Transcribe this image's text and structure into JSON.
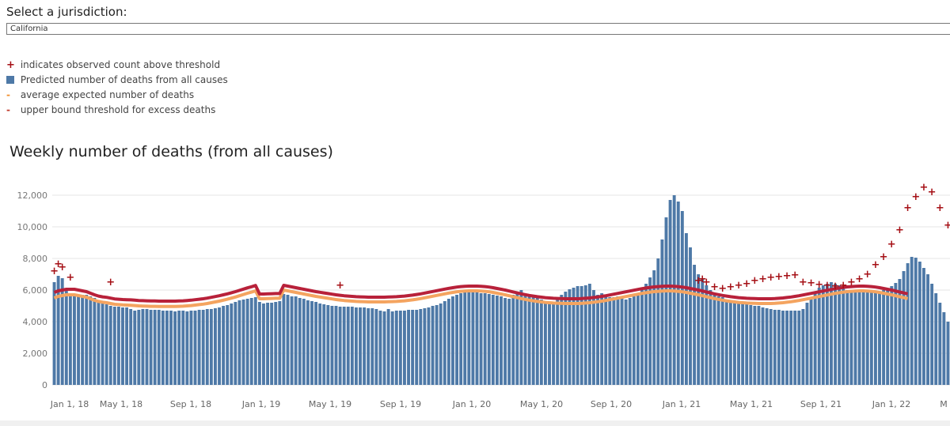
{
  "selector": {
    "label": "Select a jurisdiction:",
    "value": "California"
  },
  "legend": [
    {
      "icon": "plus-icon",
      "text": "indicates observed count above threshold",
      "color": "#a50f15"
    },
    {
      "icon": "square-icon",
      "text": "Predicted number of deaths from all causes",
      "color": "#4e79a7"
    },
    {
      "icon": "dash-icon",
      "text": "average expected number of deaths",
      "color": "#f28e2b"
    },
    {
      "icon": "dash-icon",
      "text": "upper bound threshold for excess deaths",
      "color": "#c0392b"
    }
  ],
  "chart_data": {
    "type": "bar",
    "title": "Weekly number of deaths (from all causes)",
    "xlabel": "",
    "ylabel": "",
    "ylim": [
      0,
      12500
    ],
    "yticks": [
      0,
      2000,
      4000,
      6000,
      8000,
      10000,
      12000
    ],
    "ytick_labels": [
      "0",
      "2,000",
      "4,000",
      "6,000",
      "8,000",
      "10,000",
      "12,000"
    ],
    "xtick_labels": [
      "Jan 1, 18",
      "May 1, 18",
      "Sep 1, 18",
      "Jan 1, 19",
      "May 1, 19",
      "Sep 1, 19",
      "Jan 1, 20",
      "May 1, 20",
      "Sep 1, 20",
      "Jan 1, 21",
      "May 1, 21",
      "Sep 1, 21",
      "Jan 1, 22",
      "M"
    ],
    "grid": true,
    "bar_color": "#4e79a7",
    "expected_color": "#f4a460",
    "threshold_color": "#b8213a",
    "marker_color": "#a50f15",
    "series": [
      {
        "kind": "bars",
        "values": [
          6500,
          6900,
          6750,
          6050,
          5750,
          5700,
          5650,
          5700,
          5700,
          5600,
          5500,
          5350,
          5200,
          5100,
          5000,
          4950,
          4950,
          4900,
          4900,
          4800,
          4700,
          4750,
          4800,
          4800,
          4750,
          4750,
          4750,
          4700,
          4700,
          4700,
          4650,
          4700,
          4700,
          4650,
          4700,
          4700,
          4750,
          4750,
          4800,
          4800,
          4850,
          4900,
          5000,
          5050,
          5150,
          5250,
          5350,
          5400,
          5450,
          5500,
          5550,
          5250,
          5150,
          5200,
          5200,
          5250,
          5300,
          5750,
          5700,
          5600,
          5600,
          5500,
          5450,
          5350,
          5300,
          5250,
          5150,
          5100,
          5050,
          5000,
          5000,
          4950,
          4950,
          4950,
          4950,
          4900,
          4900,
          4900,
          4850,
          4850,
          4800,
          4700,
          4650,
          4800,
          4650,
          4700,
          4700,
          4700,
          4750,
          4750,
          4750,
          4800,
          4850,
          4900,
          5000,
          5050,
          5150,
          5300,
          5450,
          5600,
          5700,
          5800,
          5850,
          5850,
          5850,
          5850,
          5800,
          5800,
          5750,
          5700,
          5650,
          5600,
          5500,
          5450,
          5700,
          5900,
          6000,
          5750,
          5600,
          5700,
          5500,
          5400,
          5250,
          5200,
          5250,
          5500,
          5700,
          5900,
          6050,
          6150,
          6250,
          6250,
          6300,
          6400,
          6000,
          5700,
          5800,
          5700,
          5550,
          5550,
          5600,
          5500,
          5400,
          5500,
          5600,
          5750,
          6000,
          6400,
          6800,
          7250,
          8000,
          9200,
          10600,
          11700,
          12000,
          11600,
          11000,
          9600,
          8700,
          7600,
          7000,
          6700,
          6300,
          6000,
          5800,
          5600,
          5550,
          5400,
          5350,
          5300,
          5200,
          5150,
          5100,
          5050,
          5000,
          5000,
          4900,
          4850,
          4800,
          4750,
          4750,
          4700,
          4700,
          4700,
          4700,
          4700,
          4800,
          5200,
          5550,
          5900,
          6150,
          6300,
          6400,
          6500,
          6400,
          6300,
          6100,
          6000,
          5950,
          5900,
          6000,
          5950,
          5900,
          5900,
          5900,
          5900,
          6000,
          6100,
          6250,
          6450,
          6700,
          7200,
          7700,
          8100,
          8050,
          7800,
          7400,
          7000,
          6400,
          5800,
          5200,
          4600,
          4000
        ]
      },
      {
        "kind": "expected_line",
        "values": [
          5500,
          5600,
          5650,
          5700,
          5700,
          5700,
          5650,
          5600,
          5550,
          5450,
          5350,
          5280,
          5230,
          5200,
          5150,
          5100,
          5080,
          5060,
          5050,
          5040,
          5020,
          5000,
          4990,
          4980,
          4970,
          4970,
          4960,
          4960,
          4960,
          4960,
          4960,
          4970,
          4980,
          5000,
          5020,
          5050,
          5080,
          5110,
          5150,
          5200,
          5250,
          5300,
          5360,
          5420,
          5490,
          5560,
          5640,
          5720,
          5800,
          5870,
          5950,
          5450,
          5450,
          5460,
          5470,
          5480,
          5480,
          6000,
          5950,
          5900,
          5850,
          5800,
          5750,
          5700,
          5650,
          5600,
          5560,
          5520,
          5480,
          5440,
          5400,
          5370,
          5340,
          5320,
          5300,
          5280,
          5270,
          5260,
          5250,
          5250,
          5250,
          5250,
          5250,
          5260,
          5270,
          5280,
          5300,
          5320,
          5350,
          5380,
          5420,
          5460,
          5510,
          5560,
          5610,
          5660,
          5710,
          5760,
          5810,
          5850,
          5890,
          5920,
          5940,
          5950,
          5950,
          5950,
          5940,
          5920,
          5890,
          5850,
          5800,
          5750,
          5700,
          5640,
          5580,
          5520,
          5460,
          5410,
          5360,
          5320,
          5280,
          5250,
          5220,
          5200,
          5180,
          5170,
          5160,
          5150,
          5150,
          5150,
          5150,
          5160,
          5180,
          5200,
          5230,
          5260,
          5300,
          5340,
          5390,
          5440,
          5490,
          5540,
          5590,
          5640,
          5690,
          5740,
          5790,
          5830,
          5870,
          5900,
          5920,
          5940,
          5950,
          5950,
          5940,
          5920,
          5890,
          5850,
          5800,
          5750,
          5700,
          5640,
          5580,
          5520,
          5460,
          5410,
          5360,
          5320,
          5280,
          5250,
          5220,
          5200,
          5180,
          5170,
          5160,
          5150,
          5150,
          5150,
          5150,
          5160,
          5180,
          5200,
          5230,
          5260,
          5300,
          5340,
          5390,
          5440,
          5490,
          5540,
          5590,
          5640,
          5690,
          5740,
          5790,
          5830,
          5870,
          5900,
          5920,
          5940,
          5950,
          5950,
          5940,
          5920,
          5890,
          5850,
          5800,
          5750,
          5700,
          5640,
          5580,
          5520,
          5460
        ]
      },
      {
        "kind": "threshold_line",
        "values": [
          5850,
          5950,
          6000,
          6050,
          6050,
          6050,
          6000,
          5950,
          5900,
          5800,
          5700,
          5620,
          5570,
          5540,
          5490,
          5440,
          5420,
          5400,
          5390,
          5380,
          5360,
          5340,
          5330,
          5320,
          5310,
          5310,
          5300,
          5300,
          5300,
          5300,
          5300,
          5310,
          5320,
          5340,
          5360,
          5390,
          5420,
          5450,
          5490,
          5540,
          5590,
          5640,
          5700,
          5760,
          5830,
          5900,
          5980,
          6060,
          6140,
          6210,
          6290,
          5750,
          5750,
          5760,
          5770,
          5780,
          5780,
          6300,
          6250,
          6200,
          6150,
          6100,
          6050,
          6000,
          5950,
          5900,
          5860,
          5820,
          5780,
          5740,
          5700,
          5670,
          5640,
          5620,
          5600,
          5580,
          5570,
          5560,
          5550,
          5550,
          5550,
          5550,
          5550,
          5560,
          5570,
          5580,
          5600,
          5620,
          5650,
          5680,
          5720,
          5760,
          5810,
          5860,
          5910,
          5960,
          6010,
          6060,
          6110,
          6150,
          6190,
          6220,
          6240,
          6250,
          6250,
          6250,
          6240,
          6220,
          6190,
          6150,
          6100,
          6050,
          6000,
          5940,
          5880,
          5820,
          5760,
          5710,
          5660,
          5620,
          5580,
          5550,
          5520,
          5500,
          5480,
          5470,
          5460,
          5450,
          5450,
          5450,
          5450,
          5460,
          5480,
          5500,
          5530,
          5560,
          5600,
          5640,
          5690,
          5740,
          5790,
          5840,
          5890,
          5940,
          5990,
          6040,
          6090,
          6130,
          6170,
          6200,
          6220,
          6240,
          6250,
          6250,
          6240,
          6220,
          6190,
          6150,
          6100,
          6050,
          6000,
          5940,
          5880,
          5820,
          5760,
          5710,
          5660,
          5620,
          5580,
          5550,
          5520,
          5500,
          5480,
          5470,
          5460,
          5450,
          5450,
          5450,
          5450,
          5460,
          5480,
          5500,
          5530,
          5560,
          5600,
          5640,
          5690,
          5740,
          5790,
          5840,
          5890,
          5940,
          5990,
          6040,
          6090,
          6130,
          6170,
          6200,
          6220,
          6240,
          6250,
          6250,
          6240,
          6220,
          6190,
          6150,
          6100,
          6050,
          6000,
          5940,
          5880,
          5820,
          5760
        ]
      },
      {
        "kind": "above_threshold_markers",
        "points": [
          [
            0,
            7200
          ],
          [
            1,
            7650
          ],
          [
            2,
            7450
          ],
          [
            4,
            6800
          ],
          [
            14,
            6500
          ],
          [
            71,
            6300
          ],
          [
            160,
            6600
          ],
          [
            161,
            6700
          ],
          [
            162,
            6500
          ],
          [
            164,
            6200
          ],
          [
            166,
            6100
          ],
          [
            168,
            6200
          ],
          [
            170,
            6300
          ],
          [
            172,
            6400
          ],
          [
            174,
            6600
          ],
          [
            176,
            6700
          ],
          [
            178,
            6800
          ],
          [
            180,
            6850
          ],
          [
            182,
            6900
          ],
          [
            184,
            6950
          ],
          [
            186,
            6500
          ],
          [
            188,
            6450
          ],
          [
            190,
            6350
          ],
          [
            192,
            6300
          ],
          [
            194,
            6250
          ],
          [
            196,
            6300
          ],
          [
            198,
            6500
          ],
          [
            200,
            6700
          ],
          [
            202,
            7000
          ],
          [
            204,
            7600
          ],
          [
            206,
            8100
          ],
          [
            208,
            8900
          ],
          [
            210,
            9800
          ],
          [
            212,
            11200
          ],
          [
            214,
            11900
          ],
          [
            216,
            12500
          ],
          [
            218,
            12200
          ],
          [
            220,
            11200
          ],
          [
            222,
            10100
          ],
          [
            224,
            9400
          ],
          [
            226,
            8600
          ],
          [
            228,
            7800
          ],
          [
            230,
            7500
          ],
          [
            232,
            7200
          ],
          [
            234,
            6900
          ],
          [
            236,
            6700
          ]
        ]
      }
    ]
  }
}
